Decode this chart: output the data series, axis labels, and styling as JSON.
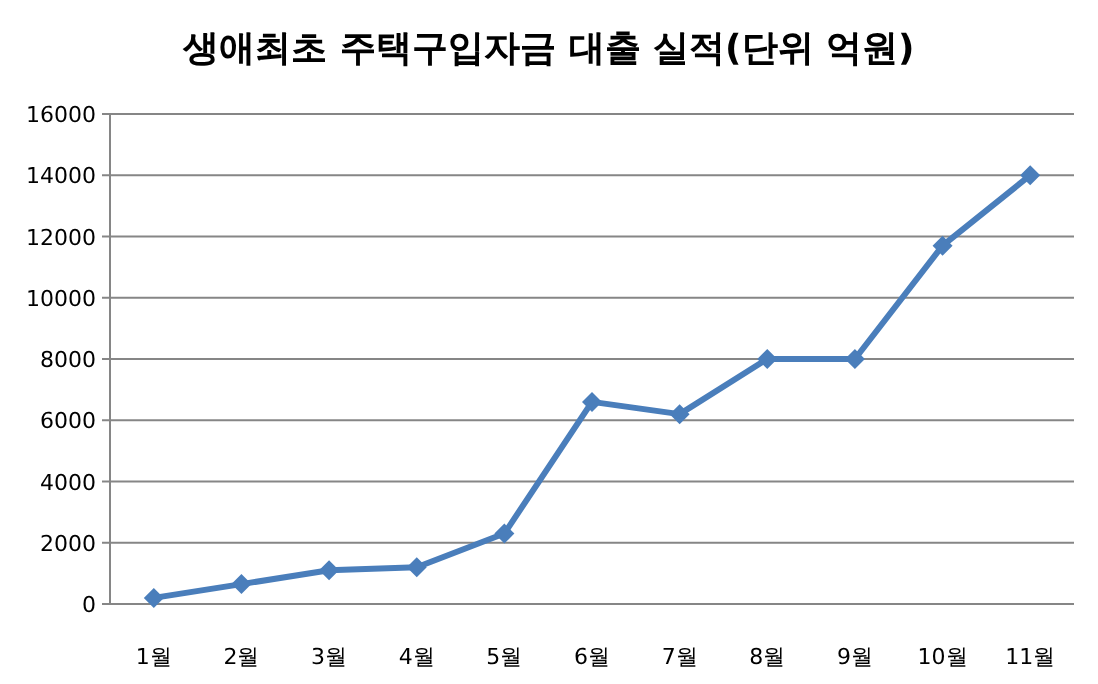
{
  "chart_data": {
    "type": "line",
    "title": "생애최초 주택구입자금 대출 실적(단위 억원)",
    "categories": [
      "1월",
      "2월",
      "3월",
      "4월",
      "5월",
      "6월",
      "7월",
      "8월",
      "9월",
      "10월",
      "11월"
    ],
    "series": [
      {
        "color": "#4a7ebb",
        "values": [
          200,
          650,
          1100,
          1200,
          2300,
          6600,
          6200,
          8000,
          8000,
          11700,
          14000
        ]
      }
    ],
    "ylim": [
      0,
      16000
    ],
    "yticks": [
      0,
      2000,
      4000,
      6000,
      8000,
      10000,
      12000,
      14000,
      16000
    ],
    "grid": "y",
    "marker": "diamond",
    "line_style": "solid"
  }
}
